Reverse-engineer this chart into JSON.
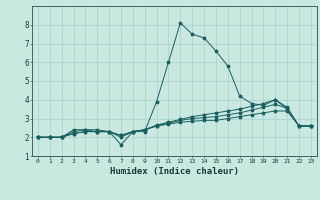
{
  "xlabel": "Humidex (Indice chaleur)",
  "bg_color": "#c8e8e0",
  "grid_color": "#a8d0cc",
  "line_color": "#1a6060",
  "xlim": [
    -0.5,
    23.5
  ],
  "ylim": [
    1,
    9
  ],
  "xticks": [
    0,
    1,
    2,
    3,
    4,
    5,
    6,
    7,
    8,
    9,
    10,
    11,
    12,
    13,
    14,
    15,
    16,
    17,
    18,
    19,
    20,
    21,
    22,
    23
  ],
  "yticks": [
    1,
    2,
    3,
    4,
    5,
    6,
    7,
    8
  ],
  "series": [
    [
      2.0,
      2.0,
      2.0,
      2.4,
      2.4,
      2.3,
      2.3,
      1.6,
      2.3,
      2.3,
      3.9,
      6.0,
      8.1,
      7.5,
      7.3,
      6.6,
      5.8,
      4.2,
      3.8,
      3.7,
      4.0,
      3.5,
      2.6,
      2.6
    ],
    [
      2.0,
      2.0,
      2.0,
      2.2,
      2.3,
      2.3,
      2.3,
      2.0,
      2.3,
      2.4,
      2.6,
      2.7,
      2.8,
      2.85,
      2.9,
      2.9,
      3.0,
      3.1,
      3.2,
      3.3,
      3.4,
      3.4,
      2.6,
      2.6
    ],
    [
      2.0,
      2.0,
      2.0,
      2.2,
      2.3,
      2.3,
      2.3,
      2.1,
      2.3,
      2.4,
      2.6,
      2.75,
      2.9,
      3.0,
      3.05,
      3.1,
      3.2,
      3.3,
      3.45,
      3.6,
      3.75,
      3.55,
      2.6,
      2.6
    ],
    [
      2.0,
      2.0,
      2.0,
      2.3,
      2.4,
      2.4,
      2.3,
      2.1,
      2.3,
      2.4,
      2.65,
      2.8,
      2.95,
      3.1,
      3.2,
      3.3,
      3.4,
      3.5,
      3.65,
      3.8,
      4.0,
      3.6,
      2.6,
      2.6
    ]
  ]
}
